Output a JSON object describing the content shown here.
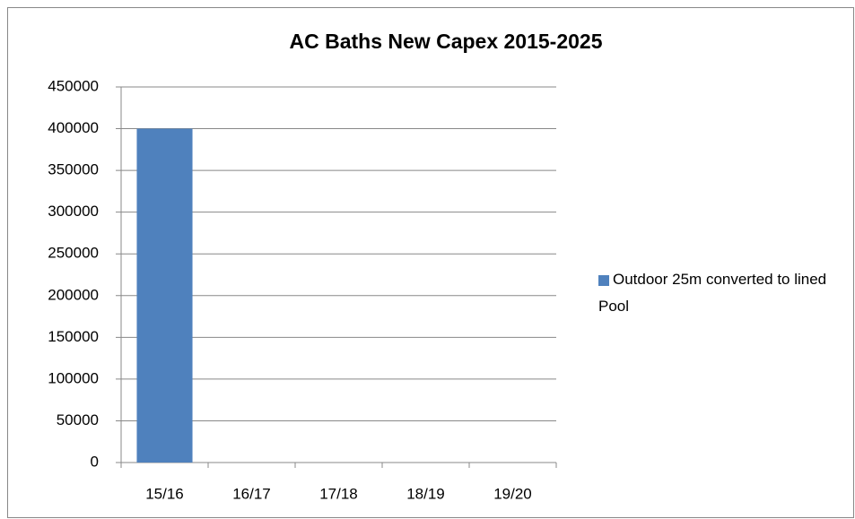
{
  "chart_data": {
    "type": "bar",
    "title": "AC Baths New Capex 2015-2025",
    "categories": [
      "15/16",
      "16/17",
      "17/18",
      "18/19",
      "19/20"
    ],
    "series": [
      {
        "name": "Outdoor 25m converted to lined Pool",
        "color": "#4f81bd",
        "values": [
          400000,
          0,
          0,
          0,
          0
        ]
      }
    ],
    "ylim": [
      0,
      450000
    ],
    "yticks": [
      0,
      50000,
      100000,
      150000,
      200000,
      250000,
      300000,
      350000,
      400000,
      450000
    ],
    "grid": true,
    "legend": "right"
  }
}
